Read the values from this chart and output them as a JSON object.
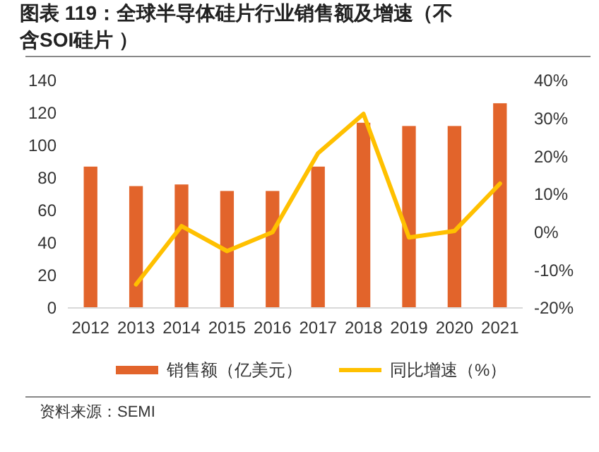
{
  "chart_data": {
    "type": "bar",
    "title": "图表 119：全球半导体硅片行业销售额及增速（不含SOI硅片 ）",
    "annotations": [
      "资料来源：SEMI"
    ],
    "categories": [
      "2012",
      "2013",
      "2014",
      "2015",
      "2016",
      "2017",
      "2018",
      "2019",
      "2020",
      "2021"
    ],
    "series": [
      {
        "name": "销售额（亿美元）",
        "color": "#e2642b",
        "values": [
          87,
          75,
          76,
          72,
          72,
          87,
          114,
          112,
          112,
          126
        ]
      },
      {
        "name": "同比增速（%）",
        "type": "line",
        "axis": "y2",
        "color": "#ffc000",
        "values": [
          null,
          -13.8,
          1.6,
          -5,
          0,
          20.8,
          31.2,
          -1.4,
          0.3,
          12.8
        ]
      }
    ],
    "ylim": [
      0,
      140
    ],
    "yticks": [
      0,
      20,
      40,
      60,
      80,
      100,
      120,
      140
    ],
    "y2lim": [
      -20,
      40
    ],
    "y2ticks": [
      {
        "value": -20,
        "label": "-20%"
      },
      {
        "value": -10,
        "label": "-10%"
      },
      {
        "value": 0,
        "label": "0%"
      },
      {
        "value": 10,
        "label": "10%"
      },
      {
        "value": 20,
        "label": "20%"
      },
      {
        "value": 30,
        "label": "30%"
      },
      {
        "value": 40,
        "label": "40%"
      }
    ],
    "legend": "bottom",
    "grid": false
  }
}
